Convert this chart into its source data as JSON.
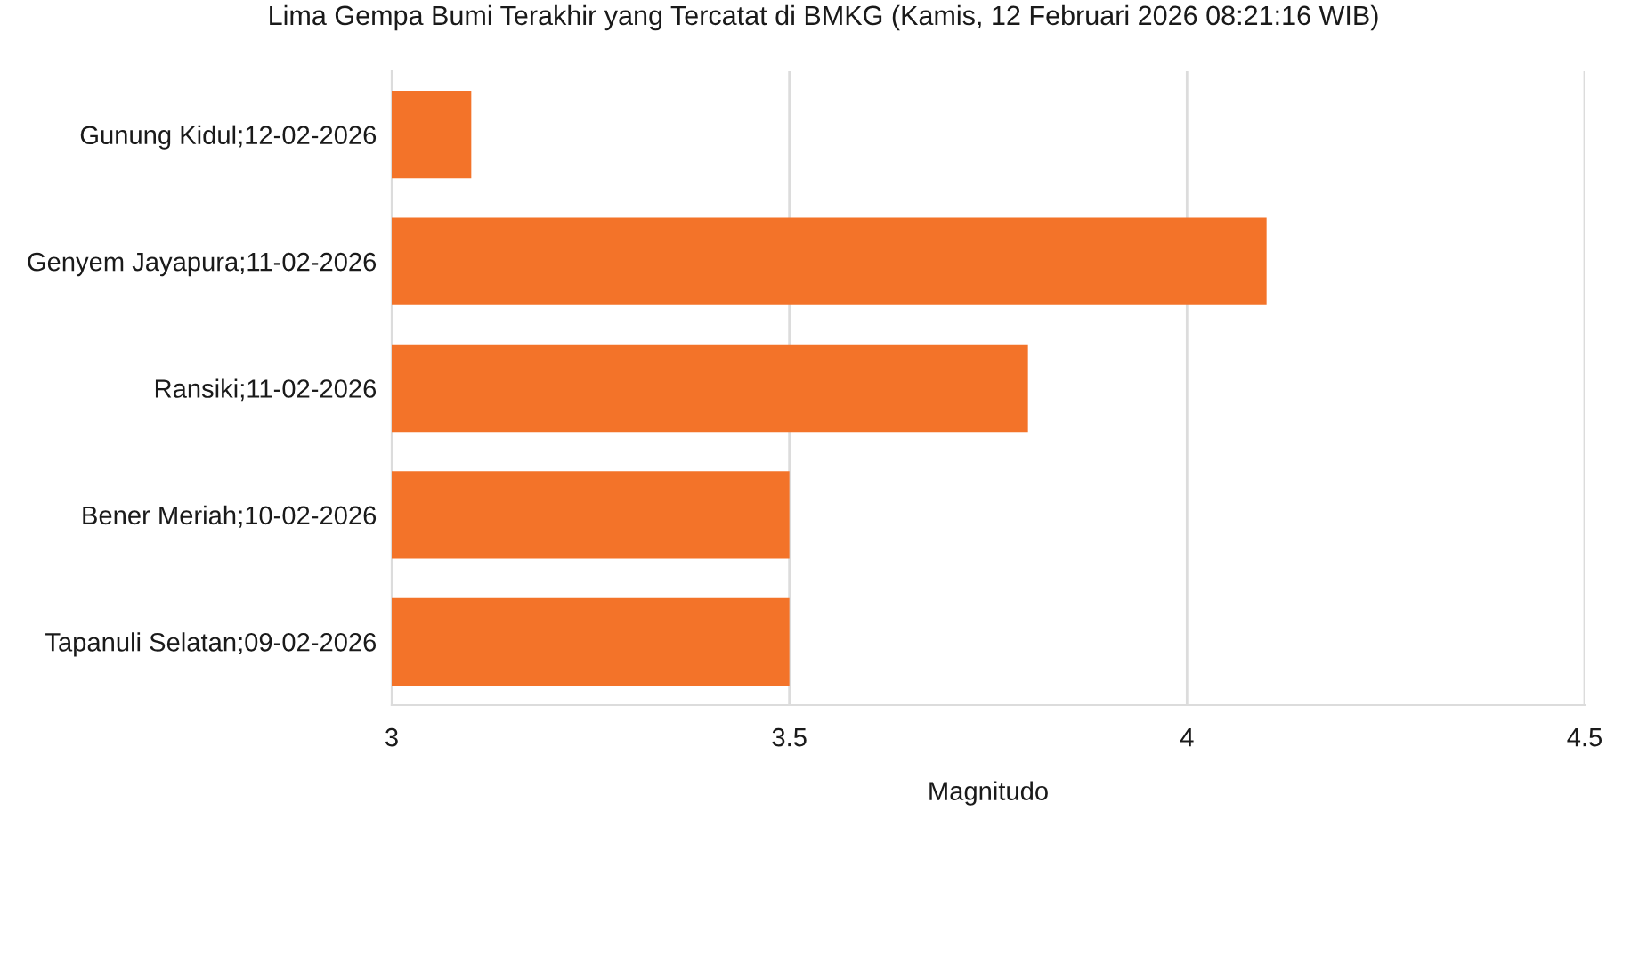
{
  "chart_data": {
    "type": "bar",
    "orientation": "horizontal",
    "title": "Lima Gempa Bumi Terakhir yang Tercatat di BMKG (Kamis, 12 Februari 2026 08:21:16 WIB)",
    "xlabel": "Magnitudo",
    "categories": [
      "Gunung Kidul;12-02-2026",
      "Genyem Jayapura;11-02-2026",
      "Ransiki;11-02-2026",
      "Bener Meriah;10-02-2026",
      "Tapanuli Selatan;09-02-2026"
    ],
    "values": [
      3.1,
      4.1,
      3.8,
      3.5,
      3.5
    ],
    "color": "#f37329",
    "xlim": [
      3,
      4.5
    ],
    "xticks": [
      3,
      3.5,
      4,
      4.5
    ],
    "grid": "x",
    "legend": false
  }
}
